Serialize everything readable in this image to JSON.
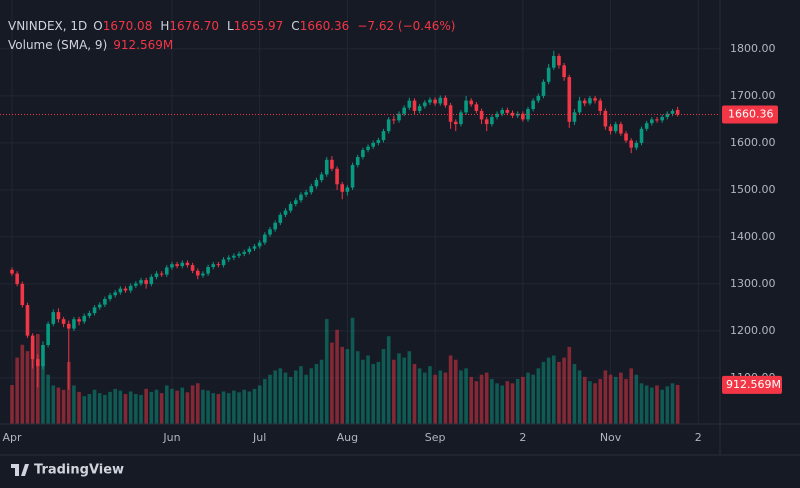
{
  "chart_data": {
    "type": "candlestick",
    "symbol": "VNINDEX, 1D",
    "ohlc_header": [
      [
        "O",
        "1670.08"
      ],
      [
        "H",
        "1676.70"
      ],
      [
        "L",
        "1655.97"
      ],
      [
        "C",
        "1660.36"
      ]
    ],
    "change": "−7.62 (−0.46%)",
    "volume_title": "Volume (SMA, 9)",
    "up_color": "#089981",
    "down_color": "#f23645",
    "grid": true,
    "ylim": [
      1002,
      1904
    ],
    "yticks": [
      {
        "value": 1100,
        "label": "1100.00"
      },
      {
        "value": 1200,
        "label": "1200.00"
      },
      {
        "value": 1300,
        "label": "1300.00"
      },
      {
        "value": 1400,
        "label": "1400.00"
      },
      {
        "value": 1500,
        "label": "1500.00"
      },
      {
        "value": 1600,
        "label": "1600.00"
      },
      {
        "value": 1700,
        "label": "1700.00"
      },
      {
        "value": 1800,
        "label": "1800.00"
      }
    ],
    "y2lim": [
      0,
      9900
    ],
    "last_price": {
      "value": 1660.36,
      "label": "1660.36"
    },
    "last_volume": {
      "value": 912.569,
      "label": "912.569M"
    },
    "brand": "TradingView",
    "categories": [
      "Apr",
      null,
      null,
      null,
      null,
      null,
      null,
      null,
      null,
      null,
      null,
      null,
      null,
      null,
      null,
      null,
      null,
      null,
      null,
      null,
      null,
      null,
      null,
      null,
      null,
      null,
      null,
      null,
      null,
      null,
      null,
      "Jun",
      null,
      null,
      null,
      null,
      null,
      null,
      null,
      null,
      null,
      null,
      null,
      null,
      null,
      null,
      null,
      null,
      "Jul",
      null,
      null,
      null,
      null,
      null,
      null,
      null,
      null,
      null,
      null,
      null,
      null,
      null,
      null,
      null,
      null,
      "Aug",
      null,
      null,
      null,
      null,
      null,
      null,
      null,
      null,
      null,
      null,
      null,
      null,
      null,
      null,
      null,
      null,
      "Sep",
      null,
      null,
      null,
      null,
      null,
      null,
      null,
      null,
      null,
      null,
      null,
      null,
      null,
      null,
      null,
      null,
      "2",
      null,
      null,
      null,
      null,
      null,
      null,
      null,
      null,
      null,
      null,
      null,
      null,
      null,
      null,
      null,
      null,
      "Nov",
      null,
      null,
      null,
      null,
      null,
      null,
      null,
      null,
      null,
      null,
      null,
      null,
      null,
      null,
      null,
      null,
      "2"
    ],
    "open": [
      1330,
      1322,
      1300,
      1255,
      1190,
      1140,
      1125,
      1170,
      1215,
      1240,
      1225,
      1215,
      1205,
      1225,
      1220,
      1232,
      1238,
      1250,
      1256,
      1268,
      1276,
      1282,
      1290,
      1286,
      1296,
      1301,
      1308,
      1300,
      1315,
      1322,
      1320,
      1335,
      1342,
      1338,
      1345,
      1340,
      1328,
      1318,
      1322,
      1336,
      1342,
      1340,
      1352,
      1356,
      1360,
      1364,
      1368,
      1375,
      1380,
      1388,
      1405,
      1416,
      1430,
      1447,
      1456,
      1470,
      1478,
      1490,
      1495,
      1508,
      1521,
      1533,
      1564,
      1545,
      1512,
      1496,
      1505,
      1553,
      1570,
      1585,
      1592,
      1600,
      1606,
      1625,
      1650,
      1648,
      1662,
      1675,
      1690,
      1668,
      1678,
      1686,
      1692,
      1684,
      1696,
      1680,
      1645,
      1640,
      1665,
      1690,
      1682,
      1668,
      1650,
      1640,
      1655,
      1662,
      1670,
      1664,
      1658,
      1662,
      1650,
      1672,
      1690,
      1700,
      1730,
      1760,
      1785,
      1765,
      1740,
      1645,
      1665,
      1690,
      1684,
      1695,
      1690,
      1668,
      1635,
      1625,
      1640,
      1620,
      1605,
      1590,
      1600,
      1630,
      1642,
      1650,
      1648,
      1655,
      1662,
      1670.08,
      null,
      null,
      null,
      null
    ],
    "high": [
      1335,
      1327,
      1305,
      1260,
      1195,
      1150,
      1178,
      1220,
      1246,
      1248,
      1230,
      1222,
      1230,
      1230,
      1237,
      1243,
      1255,
      1261,
      1273,
      1281,
      1287,
      1295,
      1295,
      1301,
      1306,
      1313,
      1313,
      1320,
      1327,
      1327,
      1340,
      1347,
      1347,
      1350,
      1350,
      1345,
      1333,
      1327,
      1341,
      1347,
      1347,
      1357,
      1361,
      1365,
      1369,
      1373,
      1380,
      1385,
      1393,
      1410,
      1421,
      1435,
      1452,
      1461,
      1475,
      1483,
      1495,
      1500,
      1513,
      1526,
      1538,
      1570,
      1572,
      1550,
      1517,
      1510,
      1558,
      1575,
      1590,
      1597,
      1605,
      1611,
      1630,
      1655,
      1658,
      1667,
      1680,
      1696,
      1695,
      1683,
      1691,
      1697,
      1697,
      1701,
      1701,
      1685,
      1650,
      1670,
      1700,
      1695,
      1687,
      1673,
      1655,
      1660,
      1667,
      1675,
      1675,
      1669,
      1667,
      1667,
      1677,
      1695,
      1705,
      1735,
      1768,
      1796,
      1790,
      1770,
      1745,
      1672,
      1698,
      1695,
      1700,
      1700,
      1695,
      1673,
      1640,
      1645,
      1645,
      1625,
      1610,
      1605,
      1635,
      1647,
      1655,
      1655,
      1660,
      1667,
      1672,
      1676.7,
      null,
      null,
      null,
      null
    ],
    "low": [
      1317,
      1295,
      1250,
      1185,
      1120,
      1080,
      1118,
      1165,
      1210,
      1218,
      1208,
      1075,
      1200,
      1212,
      1215,
      1227,
      1233,
      1245,
      1251,
      1263,
      1271,
      1277,
      1281,
      1281,
      1291,
      1296,
      1290,
      1295,
      1310,
      1315,
      1315,
      1330,
      1333,
      1333,
      1335,
      1323,
      1310,
      1313,
      1317,
      1331,
      1335,
      1335,
      1347,
      1351,
      1355,
      1359,
      1363,
      1370,
      1375,
      1383,
      1400,
      1411,
      1425,
      1442,
      1451,
      1465,
      1473,
      1485,
      1490,
      1503,
      1516,
      1528,
      1540,
      1500,
      1480,
      1488,
      1500,
      1548,
      1565,
      1580,
      1587,
      1595,
      1601,
      1620,
      1640,
      1643,
      1657,
      1670,
      1660,
      1663,
      1673,
      1681,
      1679,
      1679,
      1675,
      1630,
      1625,
      1635,
      1660,
      1677,
      1663,
      1640,
      1625,
      1635,
      1650,
      1657,
      1659,
      1653,
      1653,
      1645,
      1645,
      1667,
      1685,
      1695,
      1725,
      1755,
      1758,
      1732,
      1632,
      1638,
      1660,
      1678,
      1680,
      1684,
      1660,
      1628,
      1618,
      1620,
      1615,
      1600,
      1578,
      1585,
      1595,
      1625,
      1637,
      1643,
      1643,
      1650,
      1657,
      1655.97,
      null,
      null,
      null,
      null
    ],
    "close": [
      1322,
      1300,
      1255,
      1190,
      1140,
      1125,
      1170,
      1215,
      1240,
      1225,
      1215,
      1205,
      1225,
      1220,
      1232,
      1238,
      1250,
      1256,
      1268,
      1276,
      1282,
      1290,
      1286,
      1296,
      1301,
      1308,
      1300,
      1315,
      1322,
      1320,
      1335,
      1342,
      1338,
      1345,
      1340,
      1328,
      1318,
      1322,
      1336,
      1342,
      1340,
      1352,
      1356,
      1360,
      1364,
      1368,
      1375,
      1380,
      1388,
      1405,
      1416,
      1430,
      1447,
      1456,
      1470,
      1478,
      1490,
      1495,
      1508,
      1521,
      1533,
      1564,
      1545,
      1512,
      1496,
      1505,
      1553,
      1570,
      1585,
      1592,
      1600,
      1606,
      1625,
      1650,
      1648,
      1662,
      1675,
      1690,
      1668,
      1678,
      1686,
      1692,
      1684,
      1696,
      1680,
      1645,
      1640,
      1665,
      1690,
      1682,
      1668,
      1650,
      1640,
      1655,
      1662,
      1670,
      1664,
      1658,
      1662,
      1650,
      1672,
      1690,
      1700,
      1730,
      1760,
      1785,
      1765,
      1740,
      1645,
      1665,
      1690,
      1684,
      1695,
      1690,
      1668,
      1635,
      1625,
      1640,
      1620,
      1605,
      1590,
      1600,
      1630,
      1642,
      1650,
      1648,
      1655,
      1662,
      1667.98,
      1660.36,
      null,
      null,
      null,
      null
    ],
    "volume": [
      910,
      1550,
      1850,
      1700,
      1900,
      2100,
      1400,
      1150,
      900,
      850,
      800,
      1450,
      900,
      750,
      650,
      700,
      800,
      720,
      680,
      750,
      820,
      780,
      700,
      760,
      700,
      680,
      820,
      750,
      800,
      720,
      900,
      820,
      780,
      850,
      740,
      900,
      950,
      800,
      780,
      720,
      700,
      760,
      720,
      780,
      740,
      800,
      760,
      820,
      900,
      1050,
      1150,
      1250,
      1300,
      1200,
      1100,
      1250,
      1350,
      1150,
      1300,
      1400,
      1500,
      2450,
      1900,
      2200,
      1800,
      1750,
      2480,
      1700,
      1500,
      1600,
      1400,
      1450,
      1750,
      2050,
      1500,
      1650,
      1550,
      1700,
      1400,
      1300,
      1200,
      1350,
      1150,
      1250,
      1200,
      1600,
      1500,
      1250,
      1300,
      1100,
      1000,
      1150,
      1200,
      1050,
      950,
      900,
      1000,
      950,
      1050,
      1100,
      1200,
      1150,
      1300,
      1450,
      1550,
      1600,
      1450,
      1550,
      1800,
      1400,
      1250,
      1100,
      1000,
      950,
      1050,
      1250,
      1150,
      1100,
      1200,
      1050,
      1300,
      1150,
      950,
      900,
      850,
      900,
      800,
      880,
      950,
      912.569,
      null,
      null,
      null,
      null
    ]
  }
}
